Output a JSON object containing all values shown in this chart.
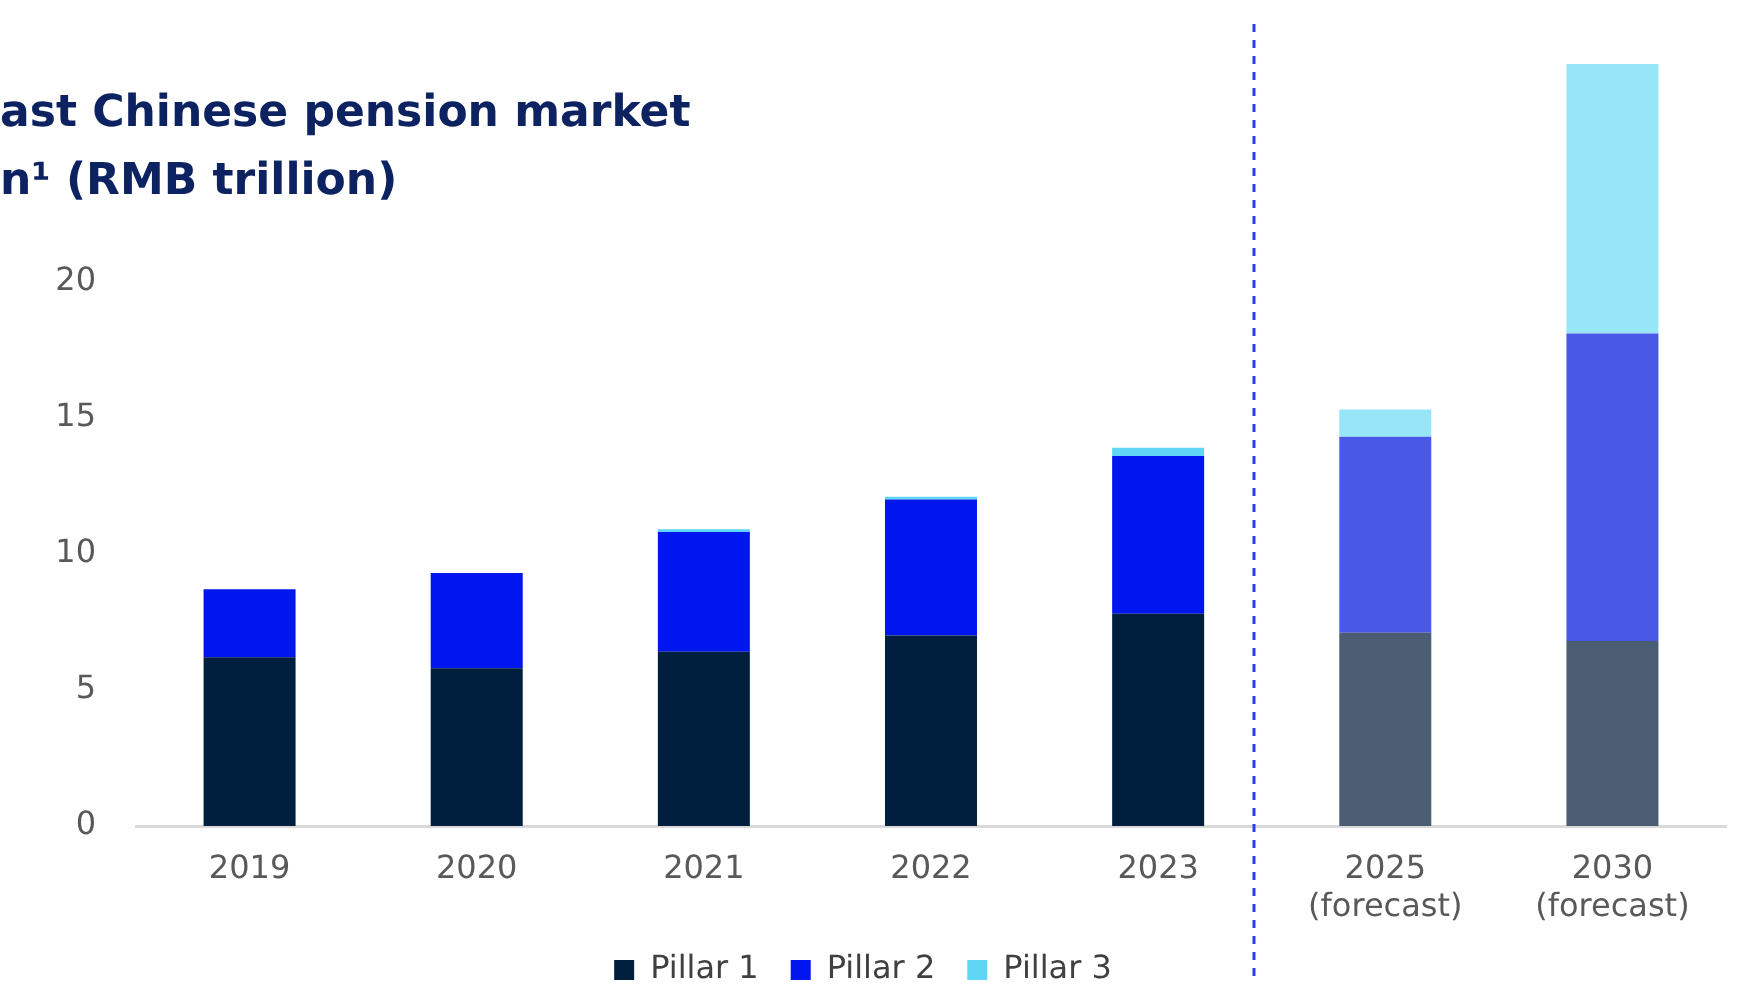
{
  "chart_data": {
    "type": "bar",
    "title": "ast Chinese pension market n¹ (RMB trillion)",
    "categories": [
      "2019",
      "2020",
      "2021",
      "2022",
      "2023",
      "2025 (forecast)",
      "2030 (forecast)"
    ],
    "series": [
      {
        "name": "Pillar 1",
        "color": "#001f3f",
        "colors": [
          "#001f3f",
          "#001f3f",
          "#001f3f",
          "#001f3f",
          "#001f3f",
          "#4a5d72",
          "#4a5d72"
        ],
        "values": [
          6.2,
          5.8,
          6.4,
          7.0,
          7.8,
          7.1,
          6.8
        ]
      },
      {
        "name": "Pillar 2",
        "color": "#0016ee",
        "colors": [
          "#0016ee",
          "#0016ee",
          "#0016ee",
          "#0016ee",
          "#0016ee",
          "#4a58e8",
          "#4a58e8"
        ],
        "values": [
          2.5,
          3.5,
          4.4,
          5.0,
          5.8,
          7.2,
          11.3
        ]
      },
      {
        "name": "Pillar 3",
        "color": "#5fd6f5",
        "colors": [
          "#5fd6f5",
          "#5fd6f5",
          "#5fd6f5",
          "#5fd6f5",
          "#5fd6f5",
          "#96e6f8",
          "#96e6f8"
        ],
        "values": [
          0,
          0,
          0.1,
          0.1,
          0.3,
          1.0,
          9.9
        ]
      }
    ],
    "stacked": true,
    "ylim": [
      0,
      28
    ],
    "yticks": [
      0,
      5,
      10,
      15,
      20
    ],
    "legend": "bottom"
  }
}
